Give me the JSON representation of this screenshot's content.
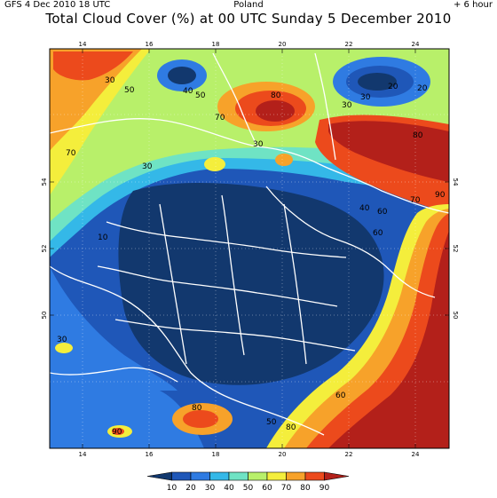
{
  "header": {
    "left": "GFS   4 Dec 2010 18 UTC",
    "center": "Poland",
    "right": "+ 6 hour"
  },
  "title": "Total Cloud Cover (%) at 00 UTC Sunday 5 December 2010",
  "axes": {
    "lon_ticks": [
      "14",
      "16",
      "18",
      "20",
      "22",
      "24"
    ],
    "lat_ticks": [
      "54",
      "52",
      "50"
    ]
  },
  "contour_labels": [
    "30",
    "50",
    "70",
    "80",
    "20",
    "30",
    "50",
    "70",
    "40",
    "30",
    "80",
    "20",
    "30",
    "60",
    "90",
    "70",
    "40",
    "60",
    "10",
    "30",
    "80",
    "90",
    "80",
    "50",
    "60",
    "30"
  ],
  "legend": {
    "values": [
      "10",
      "20",
      "30",
      "40",
      "50",
      "60",
      "70",
      "80",
      "90"
    ],
    "colors": [
      "#12386e",
      "#1f57b8",
      "#2f7be2",
      "#34b8e8",
      "#6fe3c4",
      "#b8f06a",
      "#f4ee3c",
      "#f7a22a",
      "#ec4a1c",
      "#b3201a"
    ]
  }
}
